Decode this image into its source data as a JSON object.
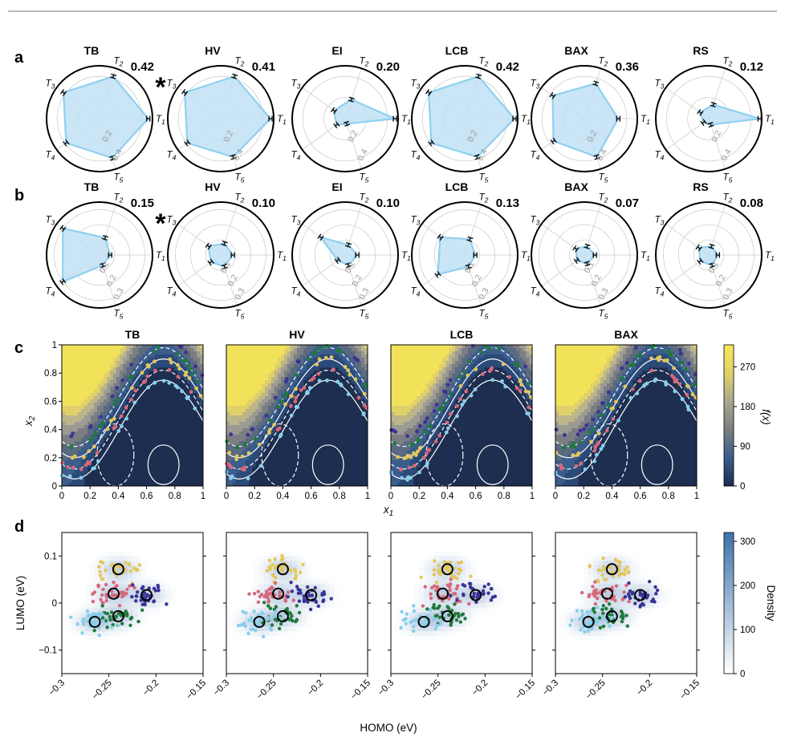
{
  "panel_labels": [
    "a",
    "b",
    "c",
    "d"
  ],
  "radar_axes": [
    "T1",
    "T2",
    "T3",
    "T4",
    "T5"
  ],
  "chart_data": [
    {
      "type": "radar",
      "panel": "a",
      "theta_labels": [
        "T1",
        "T2",
        "T3",
        "T4",
        "T5"
      ],
      "radial_ticks": [
        "0.2",
        "0.4"
      ],
      "rmax": 0.5,
      "marked_best": "TB",
      "methods": [
        {
          "name": "TB",
          "score": "0.42",
          "values": [
            0.46,
            0.42,
            0.42,
            0.39,
            0.39
          ]
        },
        {
          "name": "HV",
          "score": "0.41",
          "values": [
            0.47,
            0.42,
            0.42,
            0.39,
            0.38
          ]
        },
        {
          "name": "EI",
          "score": "0.20",
          "values": [
            0.47,
            0.19,
            0.13,
            0.1,
            0.05
          ]
        },
        {
          "name": "LCB",
          "score": "0.42",
          "values": [
            0.47,
            0.42,
            0.42,
            0.39,
            0.38
          ]
        },
        {
          "name": "BAX",
          "score": "0.36",
          "values": [
            0.32,
            0.35,
            0.37,
            0.36,
            0.38
          ]
        },
        {
          "name": "RS",
          "score": "0.12",
          "values": [
            0.48,
            0.14,
            0.1,
            0.06,
            0.06
          ]
        }
      ]
    },
    {
      "type": "radar",
      "panel": "b",
      "theta_labels": [
        "T1",
        "T2",
        "T3",
        "T4",
        "T5"
      ],
      "radial_ticks": [
        "0.1",
        "0.2",
        "0.3"
      ],
      "rmax": 0.35,
      "marked_best": "TB",
      "methods": [
        {
          "name": "TB",
          "score": "0.15",
          "values": [
            0.07,
            0.12,
            0.3,
            0.3,
            0.07
          ]
        },
        {
          "name": "HV",
          "score": "0.10",
          "values": [
            0.08,
            0.08,
            0.1,
            0.08,
            0.08
          ]
        },
        {
          "name": "EI",
          "score": "0.10",
          "values": [
            0.08,
            0.07,
            0.2,
            0.06,
            0.07
          ]
        },
        {
          "name": "LCB",
          "score": "0.13",
          "values": [
            0.07,
            0.11,
            0.2,
            0.22,
            0.08
          ]
        },
        {
          "name": "BAX",
          "score": "0.07",
          "values": [
            0.07,
            0.06,
            0.07,
            0.06,
            0.06
          ]
        },
        {
          "name": "RS",
          "score": "0.08",
          "values": [
            0.06,
            0.06,
            0.08,
            0.07,
            0.07
          ]
        }
      ]
    },
    {
      "type": "contour",
      "panel": "c",
      "methods": [
        "TB",
        "HV",
        "LCB",
        "BAX"
      ],
      "xlabel": "x1",
      "ylabel": "x2",
      "x_ticks": [
        "0",
        "0.2",
        "0.4",
        "0.6",
        "0.8",
        "1"
      ],
      "y_ticks": [
        "0",
        "0.2",
        "0.4",
        "0.6",
        "0.8",
        "1"
      ],
      "xlim": [
        0,
        1
      ],
      "ylim": [
        0,
        1
      ],
      "colorbar": {
        "label": "f(x)",
        "ticks": [
          "0",
          "90",
          "180",
          "270"
        ],
        "range": [
          0,
          320
        ]
      },
      "point_colors": [
        "#87ceeb",
        "#d6687a",
        "#e4c65a",
        "#1f7a3a",
        "#3b3395"
      ]
    },
    {
      "type": "heatmap_scatter",
      "panel": "d",
      "methods": [
        "TB",
        "HV",
        "LCB",
        "BAX"
      ],
      "xlabel": "HOMO (eV)",
      "ylabel": "LUMO (eV)",
      "x_ticks": [
        "−0.3",
        "−0.25",
        "−0.2",
        "−0.15"
      ],
      "y_ticks": [
        "−0.1",
        "0",
        "0.1"
      ],
      "xlim": [
        -0.3,
        -0.15
      ],
      "ylim": [
        -0.15,
        0.15
      ],
      "colorbar": {
        "label": "Density",
        "ticks": [
          "0",
          "100",
          "200",
          "300"
        ],
        "range": [
          0,
          320
        ]
      },
      "targets": [
        {
          "homo": -0.24,
          "lumo": 0.072,
          "color": "#e4c65a"
        },
        {
          "homo": -0.245,
          "lumo": 0.02,
          "color": "#d6687a"
        },
        {
          "homo": -0.21,
          "lumo": 0.017,
          "color": "#3b3395"
        },
        {
          "homo": -0.24,
          "lumo": -0.028,
          "color": "#1f7a3a"
        },
        {
          "homo": -0.265,
          "lumo": -0.04,
          "color": "#87ceeb"
        }
      ]
    }
  ]
}
